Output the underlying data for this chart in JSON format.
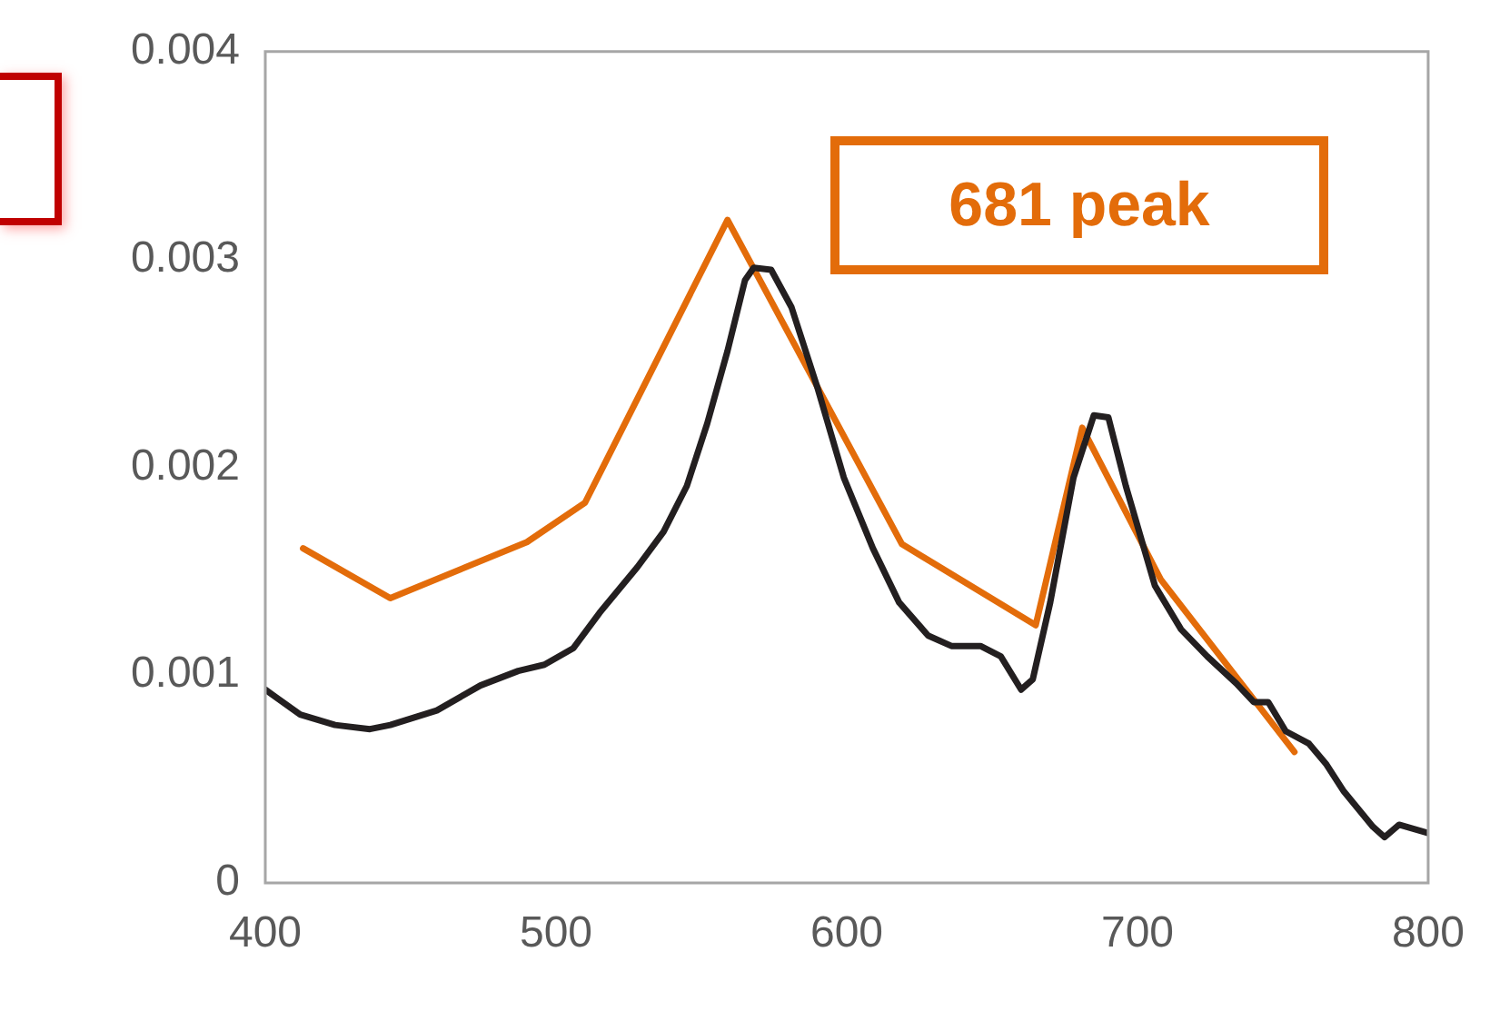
{
  "chart_data": {
    "type": "line",
    "annotations": [
      "681 peak"
    ],
    "series": [
      {
        "color": "#231f20",
        "x": [
          400,
          412,
          424,
          436,
          443,
          459,
          474,
          487,
          496,
          506,
          515,
          528,
          537,
          545,
          552,
          559,
          565,
          568,
          574,
          581,
          590,
          599,
          609,
          618,
          628,
          636,
          646,
          653,
          660,
          664,
          670,
          678,
          685,
          690,
          696,
          706,
          715,
          724,
          734,
          740,
          745,
          751,
          759,
          765,
          771,
          781,
          785,
          790,
          800
        ],
        "values": [
          0.00093,
          0.00081,
          0.00076,
          0.00074,
          0.00076,
          0.00083,
          0.00095,
          0.00102,
          0.00105,
          0.00113,
          0.0013,
          0.00152,
          0.00169,
          0.00191,
          0.00221,
          0.00256,
          0.0029,
          0.00296,
          0.00295,
          0.00277,
          0.00238,
          0.00195,
          0.00161,
          0.00135,
          0.00119,
          0.00114,
          0.00114,
          0.00109,
          0.00093,
          0.00098,
          0.00135,
          0.00195,
          0.00225,
          0.00224,
          0.00191,
          0.00143,
          0.00122,
          0.00109,
          0.00096,
          0.00087,
          0.00087,
          0.00073,
          0.00067,
          0.00057,
          0.00044,
          0.00027,
          0.00022,
          0.00028,
          0.00024
        ]
      },
      {
        "color": "#e36c0a",
        "x": [
          413,
          443,
          490,
          510,
          559,
          619,
          665,
          681,
          708,
          754
        ],
        "values": [
          0.00161,
          0.00137,
          0.00164,
          0.00183,
          0.00319,
          0.00163,
          0.00124,
          0.00219,
          0.00146,
          0.00063
        ]
      }
    ],
    "xlim": [
      400,
      800
    ],
    "xticks": [
      400,
      500,
      600,
      700,
      800
    ],
    "ylim": [
      0,
      0.004
    ],
    "yticks": [
      0,
      0.001,
      0.002,
      0.003,
      0.004
    ],
    "grid": false,
    "legend": false,
    "marker": "none",
    "line_style": "solid"
  }
}
